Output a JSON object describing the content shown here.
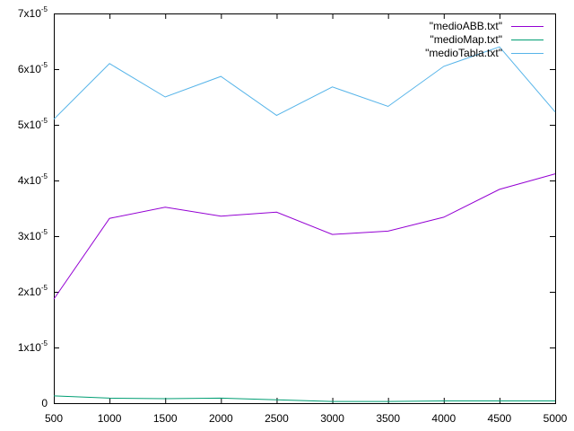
{
  "chart_data": {
    "type": "line",
    "title": "",
    "xlabel": "",
    "ylabel": "",
    "xlim": [
      500,
      5000
    ],
    "ylim": [
      0,
      7e-05
    ],
    "grid": false,
    "legend_position": "top-right",
    "x": [
      500,
      1000,
      1500,
      2000,
      2500,
      3000,
      3500,
      4000,
      4500,
      5000
    ],
    "x_ticks": [
      "500",
      "1000",
      "1500",
      "2000",
      "2500",
      "3000",
      "3500",
      "4000",
      "4500",
      "5000"
    ],
    "y_ticks": [
      {
        "value": 0,
        "mantissa": "0",
        "exp": ""
      },
      {
        "value": 1e-05,
        "mantissa": "1x10",
        "exp": "-5"
      },
      {
        "value": 2e-05,
        "mantissa": "2x10",
        "exp": "-5"
      },
      {
        "value": 3e-05,
        "mantissa": "3x10",
        "exp": "-5"
      },
      {
        "value": 4e-05,
        "mantissa": "4x10",
        "exp": "-5"
      },
      {
        "value": 5e-05,
        "mantissa": "5x10",
        "exp": "-5"
      },
      {
        "value": 6e-05,
        "mantissa": "6x10",
        "exp": "-5"
      },
      {
        "value": 7e-05,
        "mantissa": "7x10",
        "exp": "-5"
      }
    ],
    "series": [
      {
        "name": "\"medioABB.txt\"",
        "color": "#9400d3",
        "values": [
          1.87e-05,
          3.32e-05,
          3.52e-05,
          3.36e-05,
          3.43e-05,
          3.03e-05,
          3.09e-05,
          3.34e-05,
          3.84e-05,
          4.12e-05
        ]
      },
      {
        "name": "\"medioMap.txt\"",
        "color": "#009e73",
        "values": [
          1.3e-06,
          9e-07,
          8e-07,
          9e-07,
          6e-07,
          3e-07,
          3e-07,
          4e-07,
          4e-07,
          4e-07
        ]
      },
      {
        "name": "\"medioTabla.txt\"",
        "color": "#56b4e9",
        "values": [
          5.1e-05,
          6.1e-05,
          5.5e-05,
          5.87e-05,
          5.17e-05,
          5.68e-05,
          5.33e-05,
          6.05e-05,
          6.4e-05,
          5.23e-05
        ]
      }
    ]
  }
}
